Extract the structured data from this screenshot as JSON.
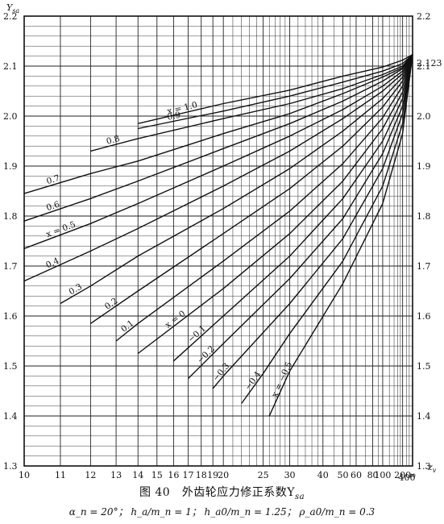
{
  "chart_data": {
    "type": "line",
    "title": "图 40　外齿轮应力修正系数Y",
    "title_subscript": "sa",
    "conditions": "α_n = 20°； h_a/m_n = 1； h_a0/m_n = 1.25； ρ_a0/m_n = 0.3",
    "ylabel": "Y",
    "ylabel_subscript": "sa",
    "xlabel": "z",
    "xlabel_subscript": "v",
    "x_scale": "reciprocal",
    "xlim": [
      10,
      400
    ],
    "ylim": [
      1.3,
      2.2
    ],
    "grid": true,
    "x_ticks": [
      10,
      11,
      12,
      13,
      14,
      15,
      16,
      17,
      18,
      19,
      20,
      25,
      30,
      40,
      50,
      60,
      80,
      100,
      200,
      400
    ],
    "x_tick_labels": [
      "10",
      "11",
      "12",
      "13",
      "14",
      "15",
      "16",
      "17",
      "18",
      "19",
      "20",
      "25",
      "30",
      "40",
      "50",
      "60",
      "80",
      "100",
      "200",
      "∞"
    ],
    "x_extra_label": "400",
    "y_ticks": [
      1.3,
      1.4,
      1.5,
      1.6,
      1.7,
      1.8,
      1.9,
      2.0,
      2.1,
      2.2
    ],
    "y_tick_labels": [
      "1.3",
      "1.4",
      "1.5",
      "1.6",
      "1.7",
      "1.8",
      "1.9",
      "2.0",
      "2.1",
      "2.2"
    ],
    "annotations": [
      {
        "text": "2.123",
        "x": 400,
        "y": 2.123
      }
    ],
    "series": [
      {
        "name": "1.0",
        "label": "x = 1.0",
        "x": [
          14,
          20,
          30,
          50,
          100,
          200,
          400
        ],
        "y": [
          1.985,
          2.025,
          2.052,
          2.08,
          2.098,
          2.112,
          2.123
        ]
      },
      {
        "name": "0.9",
        "label": "0.9",
        "x": [
          14,
          20,
          30,
          50,
          100,
          200,
          400
        ],
        "y": [
          1.975,
          2.01,
          2.04,
          2.068,
          2.09,
          2.105,
          2.123
        ]
      },
      {
        "name": "0.8",
        "label": "0.8",
        "x": [
          12,
          14,
          20,
          30,
          50,
          100,
          200,
          400
        ],
        "y": [
          1.93,
          1.955,
          1.995,
          2.025,
          2.055,
          2.083,
          2.1,
          2.123
        ]
      },
      {
        "name": "0.7",
        "label": "0.7",
        "x": [
          10,
          12,
          14,
          20,
          30,
          50,
          100,
          200,
          400
        ],
        "y": [
          1.845,
          1.885,
          1.91,
          1.965,
          2.005,
          2.045,
          2.078,
          2.097,
          2.123
        ]
      },
      {
        "name": "0.6",
        "label": "0.6",
        "x": [
          10,
          12,
          14,
          20,
          30,
          50,
          100,
          200,
          400
        ],
        "y": [
          1.79,
          1.835,
          1.87,
          1.935,
          1.985,
          2.03,
          2.07,
          2.095,
          2.123
        ]
      },
      {
        "name": "0.5",
        "label": "x = 0.5",
        "x": [
          10,
          12,
          14,
          20,
          30,
          50,
          100,
          200,
          400
        ],
        "y": [
          1.735,
          1.785,
          1.825,
          1.9,
          1.96,
          2.013,
          2.06,
          2.09,
          2.123
        ]
      },
      {
        "name": "0.4",
        "label": "0.4",
        "x": [
          10,
          12,
          14,
          20,
          30,
          50,
          100,
          200,
          400
        ],
        "y": [
          1.67,
          1.73,
          1.775,
          1.86,
          1.93,
          1.995,
          2.05,
          2.085,
          2.123
        ]
      },
      {
        "name": "0.3",
        "label": "0.3",
        "x": [
          11,
          12,
          14,
          20,
          30,
          50,
          100,
          200,
          400
        ],
        "y": [
          1.625,
          1.66,
          1.72,
          1.815,
          1.895,
          1.97,
          2.035,
          2.078,
          2.123
        ]
      },
      {
        "name": "0.2",
        "label": "0.2",
        "x": [
          12,
          14,
          20,
          30,
          50,
          100,
          200,
          400
        ],
        "y": [
          1.585,
          1.65,
          1.765,
          1.855,
          1.94,
          2.018,
          2.07,
          2.123
        ]
      },
      {
        "name": "0.1",
        "label": "0.1",
        "x": [
          13,
          14,
          20,
          30,
          50,
          100,
          200,
          400
        ],
        "y": [
          1.55,
          1.585,
          1.71,
          1.81,
          1.905,
          1.997,
          2.06,
          2.123
        ]
      },
      {
        "name": "0",
        "label": "x = 0",
        "x": [
          14,
          20,
          30,
          50,
          100,
          200,
          400
        ],
        "y": [
          1.525,
          1.655,
          1.765,
          1.87,
          1.975,
          2.048,
          2.123
        ]
      },
      {
        "name": "-0.1",
        "label": "−0.1",
        "x": [
          16,
          20,
          30,
          50,
          100,
          200,
          400
        ],
        "y": [
          1.51,
          1.6,
          1.72,
          1.835,
          1.95,
          2.035,
          2.123
        ]
      },
      {
        "name": "-0.2",
        "label": "−0.2",
        "x": [
          17,
          20,
          30,
          50,
          100,
          200,
          400
        ],
        "y": [
          1.475,
          1.545,
          1.675,
          1.795,
          1.925,
          2.02,
          2.123
        ]
      },
      {
        "name": "-0.3",
        "label": "−0.3",
        "x": [
          19,
          20,
          30,
          50,
          100,
          200,
          400
        ],
        "y": [
          1.455,
          1.48,
          1.625,
          1.755,
          1.895,
          2.005,
          2.123
        ]
      },
      {
        "name": "-0.4",
        "label": "−0.4",
        "x": [
          22,
          25,
          30,
          50,
          100,
          200,
          400
        ],
        "y": [
          1.425,
          1.485,
          1.565,
          1.71,
          1.86,
          1.985,
          2.123
        ]
      },
      {
        "name": "-0.5",
        "label": "x = −0.5",
        "x": [
          26,
          30,
          50,
          100,
          200,
          400
        ],
        "y": [
          1.4,
          1.49,
          1.665,
          1.825,
          1.965,
          2.123
        ]
      }
    ]
  }
}
